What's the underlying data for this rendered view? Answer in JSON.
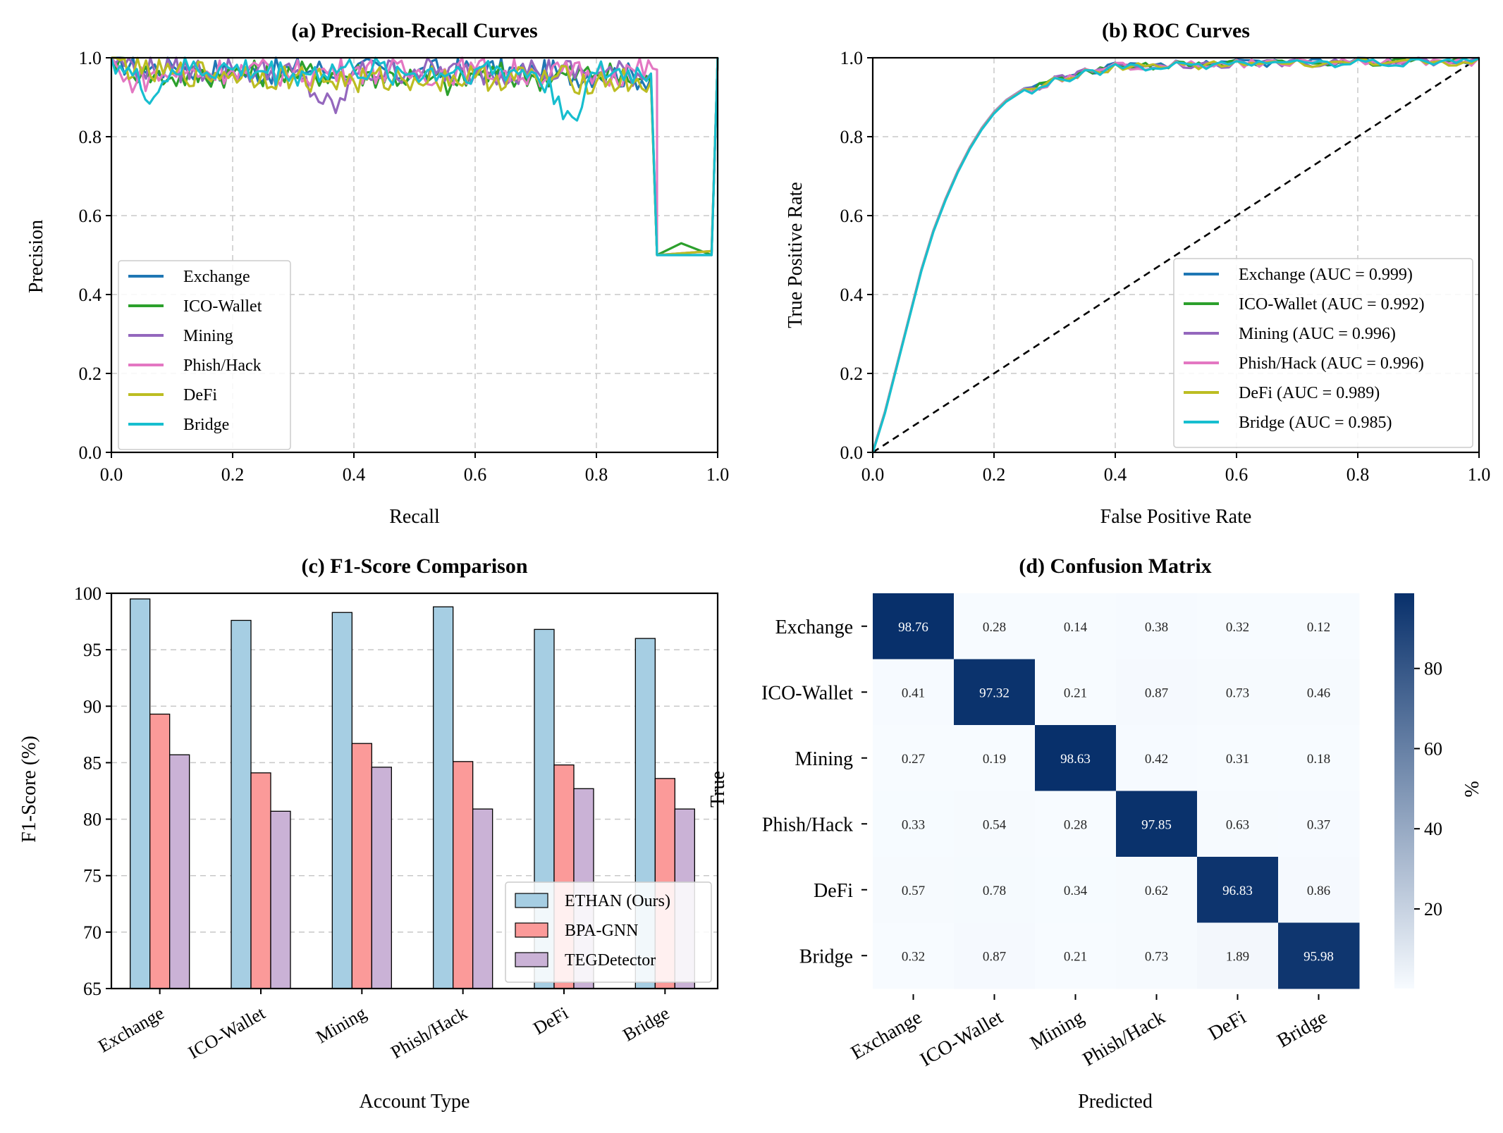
{
  "colors": {
    "series": [
      "#1f77b4",
      "#2ca02c",
      "#9467bd",
      "#e377c2",
      "#bcbd22",
      "#17becf"
    ],
    "bars": [
      "#a6cee3",
      "#fb9a99",
      "#cab2d6"
    ],
    "cmap_low": "#f7fbff",
    "cmap_high": "#08306b",
    "grid": "#c8c8c8"
  },
  "classes": [
    "Exchange",
    "ICO-Wallet",
    "Mining",
    "Phish/Hack",
    "DeFi",
    "Bridge"
  ],
  "pr": {
    "title": "(a) Precision-Recall Curves",
    "xlabel": "Recall",
    "ylabel": "Precision",
    "xticks": [
      "0.0",
      "0.2",
      "0.4",
      "0.6",
      "0.8",
      "1.0"
    ],
    "yticks": [
      "0.0",
      "0.2",
      "0.4",
      "0.6",
      "0.8",
      "1.0"
    ],
    "legend": [
      "Exchange",
      "ICO-Wallet",
      "Mining",
      "Phish/Hack",
      "DeFi",
      "Bridge"
    ]
  },
  "roc": {
    "title": "(b) ROC Curves",
    "xlabel": "False Positive Rate",
    "ylabel": "True Positive Rate",
    "xticks": [
      "0.0",
      "0.2",
      "0.4",
      "0.6",
      "0.8",
      "1.0"
    ],
    "yticks": [
      "0.0",
      "0.2",
      "0.4",
      "0.6",
      "0.8",
      "1.0"
    ],
    "legend": [
      "Exchange (AUC = 0.999)",
      "ICO-Wallet (AUC = 0.992)",
      "Mining (AUC = 0.996)",
      "Phish/Hack (AUC = 0.996)",
      "DeFi (AUC = 0.989)",
      "Bridge (AUC = 0.985)"
    ]
  },
  "f1": {
    "title": "(c) F1-Score Comparison",
    "xlabel": "Account Type",
    "ylabel": "F1-Score (%)",
    "yticks": [
      "65",
      "70",
      "75",
      "80",
      "85",
      "90",
      "95",
      "100"
    ],
    "legend": [
      "ETHAN (Ours)",
      "BPA-GNN",
      "TEGDetector"
    ]
  },
  "cm": {
    "title": "(d) Confusion Matrix",
    "xlabel": "Predicted",
    "ylabel": "True",
    "cbar_label": "%",
    "cbar_ticks": [
      "20",
      "40",
      "60",
      "80"
    ]
  },
  "chart_data": [
    {
      "type": "line",
      "title": "(a) Precision-Recall Curves",
      "xlabel": "Recall",
      "ylabel": "Precision",
      "xlim": [
        0,
        1
      ],
      "ylim": [
        0,
        1
      ],
      "grid": true,
      "legend_position": "lower-left",
      "series": [
        {
          "name": "Exchange",
          "points": [
            [
              0.0,
              1.0
            ],
            [
              0.05,
              0.97
            ],
            [
              0.1,
              0.98
            ],
            [
              0.2,
              0.96
            ],
            [
              0.3,
              0.97
            ],
            [
              0.4,
              0.97
            ],
            [
              0.5,
              0.96
            ],
            [
              0.6,
              0.97
            ],
            [
              0.7,
              0.96
            ],
            [
              0.8,
              0.96
            ],
            [
              0.89,
              0.95
            ],
            [
              0.9,
              0.5
            ],
            [
              0.99,
              0.5
            ],
            [
              1.0,
              1.0
            ]
          ]
        },
        {
          "name": "ICO-Wallet",
          "points": [
            [
              0.0,
              1.0
            ],
            [
              0.05,
              0.96
            ],
            [
              0.1,
              0.95
            ],
            [
              0.2,
              0.96
            ],
            [
              0.3,
              0.96
            ],
            [
              0.4,
              0.96
            ],
            [
              0.5,
              0.95
            ],
            [
              0.57,
              0.93
            ],
            [
              0.6,
              0.96
            ],
            [
              0.7,
              0.95
            ],
            [
              0.8,
              0.96
            ],
            [
              0.89,
              0.94
            ],
            [
              0.9,
              0.5
            ],
            [
              0.94,
              0.53
            ],
            [
              0.99,
              0.5
            ],
            [
              1.0,
              1.0
            ]
          ]
        },
        {
          "name": "Mining",
          "points": [
            [
              0.0,
              1.0
            ],
            [
              0.05,
              0.97
            ],
            [
              0.1,
              0.97
            ],
            [
              0.2,
              0.97
            ],
            [
              0.3,
              0.96
            ],
            [
              0.37,
              0.86
            ],
            [
              0.4,
              0.96
            ],
            [
              0.5,
              0.97
            ],
            [
              0.6,
              0.96
            ],
            [
              0.7,
              0.97
            ],
            [
              0.8,
              0.96
            ],
            [
              0.89,
              0.96
            ],
            [
              0.9,
              0.5
            ],
            [
              0.99,
              0.51
            ],
            [
              1.0,
              1.0
            ]
          ]
        },
        {
          "name": "Phish/Hack",
          "points": [
            [
              0.0,
              1.0
            ],
            [
              0.02,
              0.94
            ],
            [
              0.1,
              0.96
            ],
            [
              0.2,
              0.97
            ],
            [
              0.3,
              0.96
            ],
            [
              0.4,
              0.97
            ],
            [
              0.5,
              0.96
            ],
            [
              0.6,
              0.97
            ],
            [
              0.7,
              0.96
            ],
            [
              0.8,
              0.96
            ],
            [
              0.9,
              0.97
            ],
            [
              0.9,
              0.5
            ],
            [
              0.99,
              0.51
            ],
            [
              1.0,
              1.0
            ]
          ]
        },
        {
          "name": "DeFi",
          "points": [
            [
              0.0,
              1.0
            ],
            [
              0.05,
              0.96
            ],
            [
              0.1,
              0.96
            ],
            [
              0.2,
              0.96
            ],
            [
              0.3,
              0.95
            ],
            [
              0.4,
              0.94
            ],
            [
              0.5,
              0.95
            ],
            [
              0.6,
              0.95
            ],
            [
              0.7,
              0.95
            ],
            [
              0.8,
              0.94
            ],
            [
              0.89,
              0.94
            ],
            [
              0.9,
              0.5
            ],
            [
              0.99,
              0.51
            ],
            [
              1.0,
              1.0
            ]
          ]
        },
        {
          "name": "Bridge",
          "points": [
            [
              0.0,
              1.0
            ],
            [
              0.07,
              0.9
            ],
            [
              0.1,
              0.97
            ],
            [
              0.2,
              0.97
            ],
            [
              0.3,
              0.96
            ],
            [
              0.4,
              0.97
            ],
            [
              0.5,
              0.96
            ],
            [
              0.6,
              0.97
            ],
            [
              0.7,
              0.96
            ],
            [
              0.76,
              0.85
            ],
            [
              0.8,
              0.96
            ],
            [
              0.89,
              0.96
            ],
            [
              0.9,
              0.5
            ],
            [
              0.99,
              0.5
            ],
            [
              1.0,
              1.0
            ]
          ]
        }
      ]
    },
    {
      "type": "line",
      "title": "(b) ROC Curves",
      "xlabel": "False Positive Rate",
      "ylabel": "True Positive Rate",
      "xlim": [
        0,
        1
      ],
      "ylim": [
        0,
        1
      ],
      "grid": true,
      "legend_position": "lower-right",
      "diagonal": [
        [
          0,
          0
        ],
        [
          1,
          1
        ]
      ],
      "base_curve": [
        [
          0,
          0
        ],
        [
          0.02,
          0.1
        ],
        [
          0.04,
          0.22
        ],
        [
          0.06,
          0.34
        ],
        [
          0.08,
          0.46
        ],
        [
          0.1,
          0.56
        ],
        [
          0.12,
          0.64
        ],
        [
          0.14,
          0.71
        ],
        [
          0.16,
          0.77
        ],
        [
          0.18,
          0.82
        ],
        [
          0.2,
          0.86
        ],
        [
          0.22,
          0.89
        ],
        [
          0.25,
          0.92
        ],
        [
          0.3,
          0.95
        ],
        [
          0.35,
          0.97
        ],
        [
          0.4,
          0.985
        ],
        [
          0.5,
          0.99
        ],
        [
          0.6,
          0.993
        ],
        [
          0.7,
          0.995
        ],
        [
          0.8,
          0.997
        ],
        [
          0.9,
          0.998
        ],
        [
          1.0,
          1.0
        ]
      ],
      "series": [
        {
          "name": "Exchange (AUC = 0.999)",
          "auc": 0.999
        },
        {
          "name": "ICO-Wallet (AUC = 0.992)",
          "auc": 0.992
        },
        {
          "name": "Mining (AUC = 0.996)",
          "auc": 0.996
        },
        {
          "name": "Phish/Hack (AUC = 0.996)",
          "auc": 0.996
        },
        {
          "name": "DeFi (AUC = 0.989)",
          "auc": 0.989
        },
        {
          "name": "Bridge (AUC = 0.985)",
          "auc": 0.985
        }
      ]
    },
    {
      "type": "bar",
      "title": "(c) F1-Score Comparison",
      "xlabel": "Account Type",
      "ylabel": "F1-Score (%)",
      "ylim": [
        65,
        100
      ],
      "grid": true,
      "legend_position": "lower-right",
      "categories": [
        "Exchange",
        "ICO-Wallet",
        "Mining",
        "Phish/Hack",
        "DeFi",
        "Bridge"
      ],
      "series": [
        {
          "name": "ETHAN (Ours)",
          "values": [
            99.5,
            97.6,
            98.3,
            98.8,
            96.8,
            96.0
          ]
        },
        {
          "name": "BPA-GNN",
          "values": [
            89.3,
            84.1,
            86.7,
            85.1,
            84.8,
            83.6
          ]
        },
        {
          "name": "TEGDetector",
          "values": [
            85.7,
            80.7,
            84.6,
            80.9,
            82.7,
            80.9
          ]
        }
      ]
    },
    {
      "type": "heatmap",
      "title": "(d) Confusion Matrix",
      "xlabel": "Predicted",
      "ylabel": "True",
      "x": [
        "Exchange",
        "ICO-Wallet",
        "Mining",
        "Phish/Hack",
        "DeFi",
        "Bridge"
      ],
      "y": [
        "Exchange",
        "ICO-Wallet",
        "Mining",
        "Phish/Hack",
        "DeFi",
        "Bridge"
      ],
      "values": [
        [
          98.76,
          0.28,
          0.14,
          0.38,
          0.32,
          0.12
        ],
        [
          0.41,
          97.32,
          0.21,
          0.87,
          0.73,
          0.46
        ],
        [
          0.27,
          0.19,
          98.63,
          0.42,
          0.31,
          0.18
        ],
        [
          0.33,
          0.54,
          0.28,
          97.85,
          0.63,
          0.37
        ],
        [
          0.57,
          0.78,
          0.34,
          0.62,
          96.83,
          0.86
        ],
        [
          0.32,
          0.87,
          0.21,
          0.73,
          1.89,
          95.98
        ]
      ],
      "colorbar": {
        "label": "%",
        "range": [
          0.12,
          98.76
        ],
        "ticks": [
          20,
          40,
          60,
          80
        ]
      }
    }
  ]
}
